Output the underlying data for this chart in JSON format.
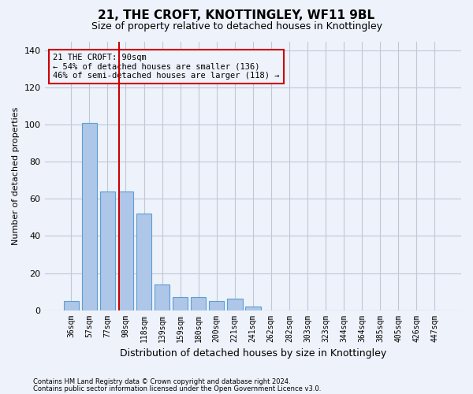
{
  "title": "21, THE CROFT, KNOTTINGLEY, WF11 9BL",
  "subtitle": "Size of property relative to detached houses in Knottingley",
  "xlabel": "Distribution of detached houses by size in Knottingley",
  "ylabel": "Number of detached properties",
  "footnote1": "Contains HM Land Registry data © Crown copyright and database right 2024.",
  "footnote2": "Contains public sector information licensed under the Open Government Licence v3.0.",
  "bins": [
    "36sqm",
    "57sqm",
    "77sqm",
    "98sqm",
    "118sqm",
    "139sqm",
    "159sqm",
    "180sqm",
    "200sqm",
    "221sqm",
    "241sqm",
    "262sqm",
    "282sqm",
    "303sqm",
    "323sqm",
    "344sqm",
    "364sqm",
    "385sqm",
    "405sqm",
    "426sqm",
    "447sqm"
  ],
  "values": [
    5,
    101,
    64,
    64,
    52,
    14,
    7,
    7,
    5,
    6,
    2,
    0,
    0,
    0,
    0,
    0,
    0,
    0,
    0,
    0,
    0
  ],
  "bar_color": "#aec6e8",
  "bar_edge_color": "#5a9fd4",
  "vline_x_data": 2.62,
  "annotation_line1": "21 THE CROFT: 90sqm",
  "annotation_line2": "← 54% of detached houses are smaller (136)",
  "annotation_line3": "46% of semi-detached houses are larger (118) →",
  "annotation_color": "#cc0000",
  "vline_color": "#cc0000",
  "background_color": "#eef2fa",
  "grid_color": "#c0c8d8",
  "ylim": [
    0,
    145
  ],
  "yticks": [
    0,
    20,
    40,
    60,
    80,
    100,
    120,
    140
  ]
}
